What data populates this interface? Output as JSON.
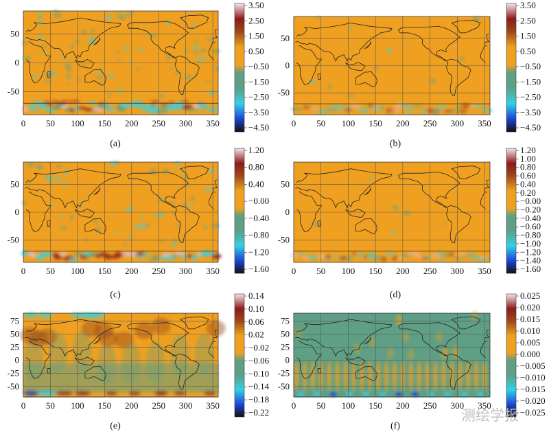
{
  "watermark": "测绘学报",
  "colors": {
    "ocean": "#f0a020",
    "land_line": "#222222",
    "grid": "#555555",
    "teal": "#5f9f85",
    "cyan": "#33d0e6",
    "blue": "#1f43d6",
    "dark": "#111111",
    "red": "#8e1a1a",
    "brown": "#9a4a1a",
    "pink": "#e8bcc8"
  },
  "chart_data": [
    {
      "panel": "a",
      "caption": "(a)",
      "type": "heatmap",
      "x_ticks": [
        0,
        50,
        100,
        150,
        200,
        250,
        300,
        350
      ],
      "y_ticks": [
        50,
        0,
        -50
      ],
      "xlim": [
        0,
        360
      ],
      "ylim": [
        -90,
        90
      ],
      "colorbar_ticks": [
        "3.50",
        "2.50",
        "1.50",
        "0.50",
        "−0.50",
        "−1.50",
        "−2.50",
        "−3.50",
        "−4.50"
      ],
      "colorbar_range": [
        -4.5,
        3.5
      ]
    },
    {
      "panel": "b",
      "caption": "(b)",
      "type": "heatmap",
      "x_ticks": [
        0,
        50,
        100,
        150,
        200,
        250,
        300,
        350
      ],
      "y_ticks": [
        50,
        0,
        -50
      ],
      "xlim": [
        0,
        360
      ],
      "ylim": [
        -90,
        90
      ],
      "colorbar_ticks": [
        "3.50",
        "2.50",
        "1.50",
        "0.50",
        "−0.50",
        "−1.50",
        "−2.50",
        "−3.50",
        "−4.50"
      ],
      "colorbar_range": [
        -4.5,
        3.5
      ]
    },
    {
      "panel": "c",
      "caption": "(c)",
      "type": "heatmap",
      "x_ticks": [
        0,
        50,
        100,
        150,
        200,
        250,
        300,
        350
      ],
      "y_ticks": [
        50,
        0,
        -50
      ],
      "xlim": [
        0,
        360
      ],
      "ylim": [
        -90,
        90
      ],
      "colorbar_ticks": [
        "1.20",
        "0.80",
        "0.40",
        "−0.00",
        "−0.40",
        "−0.80",
        "−1.20",
        "−1.60"
      ],
      "colorbar_range": [
        -1.6,
        1.2
      ]
    },
    {
      "panel": "d",
      "caption": "(d)",
      "type": "heatmap",
      "x_ticks": [
        0,
        50,
        100,
        150,
        200,
        250,
        300,
        350
      ],
      "y_ticks": [
        50,
        0,
        -50
      ],
      "xlim": [
        0,
        360
      ],
      "ylim": [
        -90,
        90
      ],
      "colorbar_ticks": [
        "1.20",
        "1.00",
        "0.80",
        "0.60",
        "0.40",
        "0.20",
        "−0.00",
        "−0.20",
        "−0.40",
        "−0.60",
        "−0.80",
        "−1.00",
        "−1.20",
        "−1.40",
        "−1.60"
      ],
      "colorbar_range": [
        -1.6,
        1.2
      ]
    },
    {
      "panel": "e",
      "caption": "(e)",
      "type": "heatmap",
      "x_ticks": [
        0,
        50,
        100,
        150,
        200,
        250,
        300,
        350
      ],
      "y_ticks": [
        75,
        50,
        25,
        0,
        -25,
        -50
      ],
      "xlim": [
        0,
        360
      ],
      "ylim": [
        -70,
        90
      ],
      "colorbar_ticks": [
        "0.14",
        "0.10",
        "0.06",
        "0.02",
        "−0.02",
        "−0.06",
        "−0.10",
        "−0.14",
        "−0.18",
        "−0.22"
      ],
      "colorbar_range": [
        -0.22,
        0.14
      ]
    },
    {
      "panel": "f",
      "caption": "(f)",
      "type": "heatmap",
      "x_ticks": [
        0,
        50,
        100,
        150,
        200,
        250,
        300,
        350
      ],
      "y_ticks": [
        75,
        50,
        25,
        0,
        -25,
        -50
      ],
      "xlim": [
        0,
        360
      ],
      "ylim": [
        -70,
        90
      ],
      "colorbar_ticks": [
        "0.025",
        "0.020",
        "0.015",
        "0.010",
        "0.005",
        "0.000",
        "−0.005",
        "−0.010",
        "−0.015",
        "−0.020",
        "−0.025"
      ],
      "colorbar_range": [
        -0.025,
        0.025
      ]
    }
  ]
}
